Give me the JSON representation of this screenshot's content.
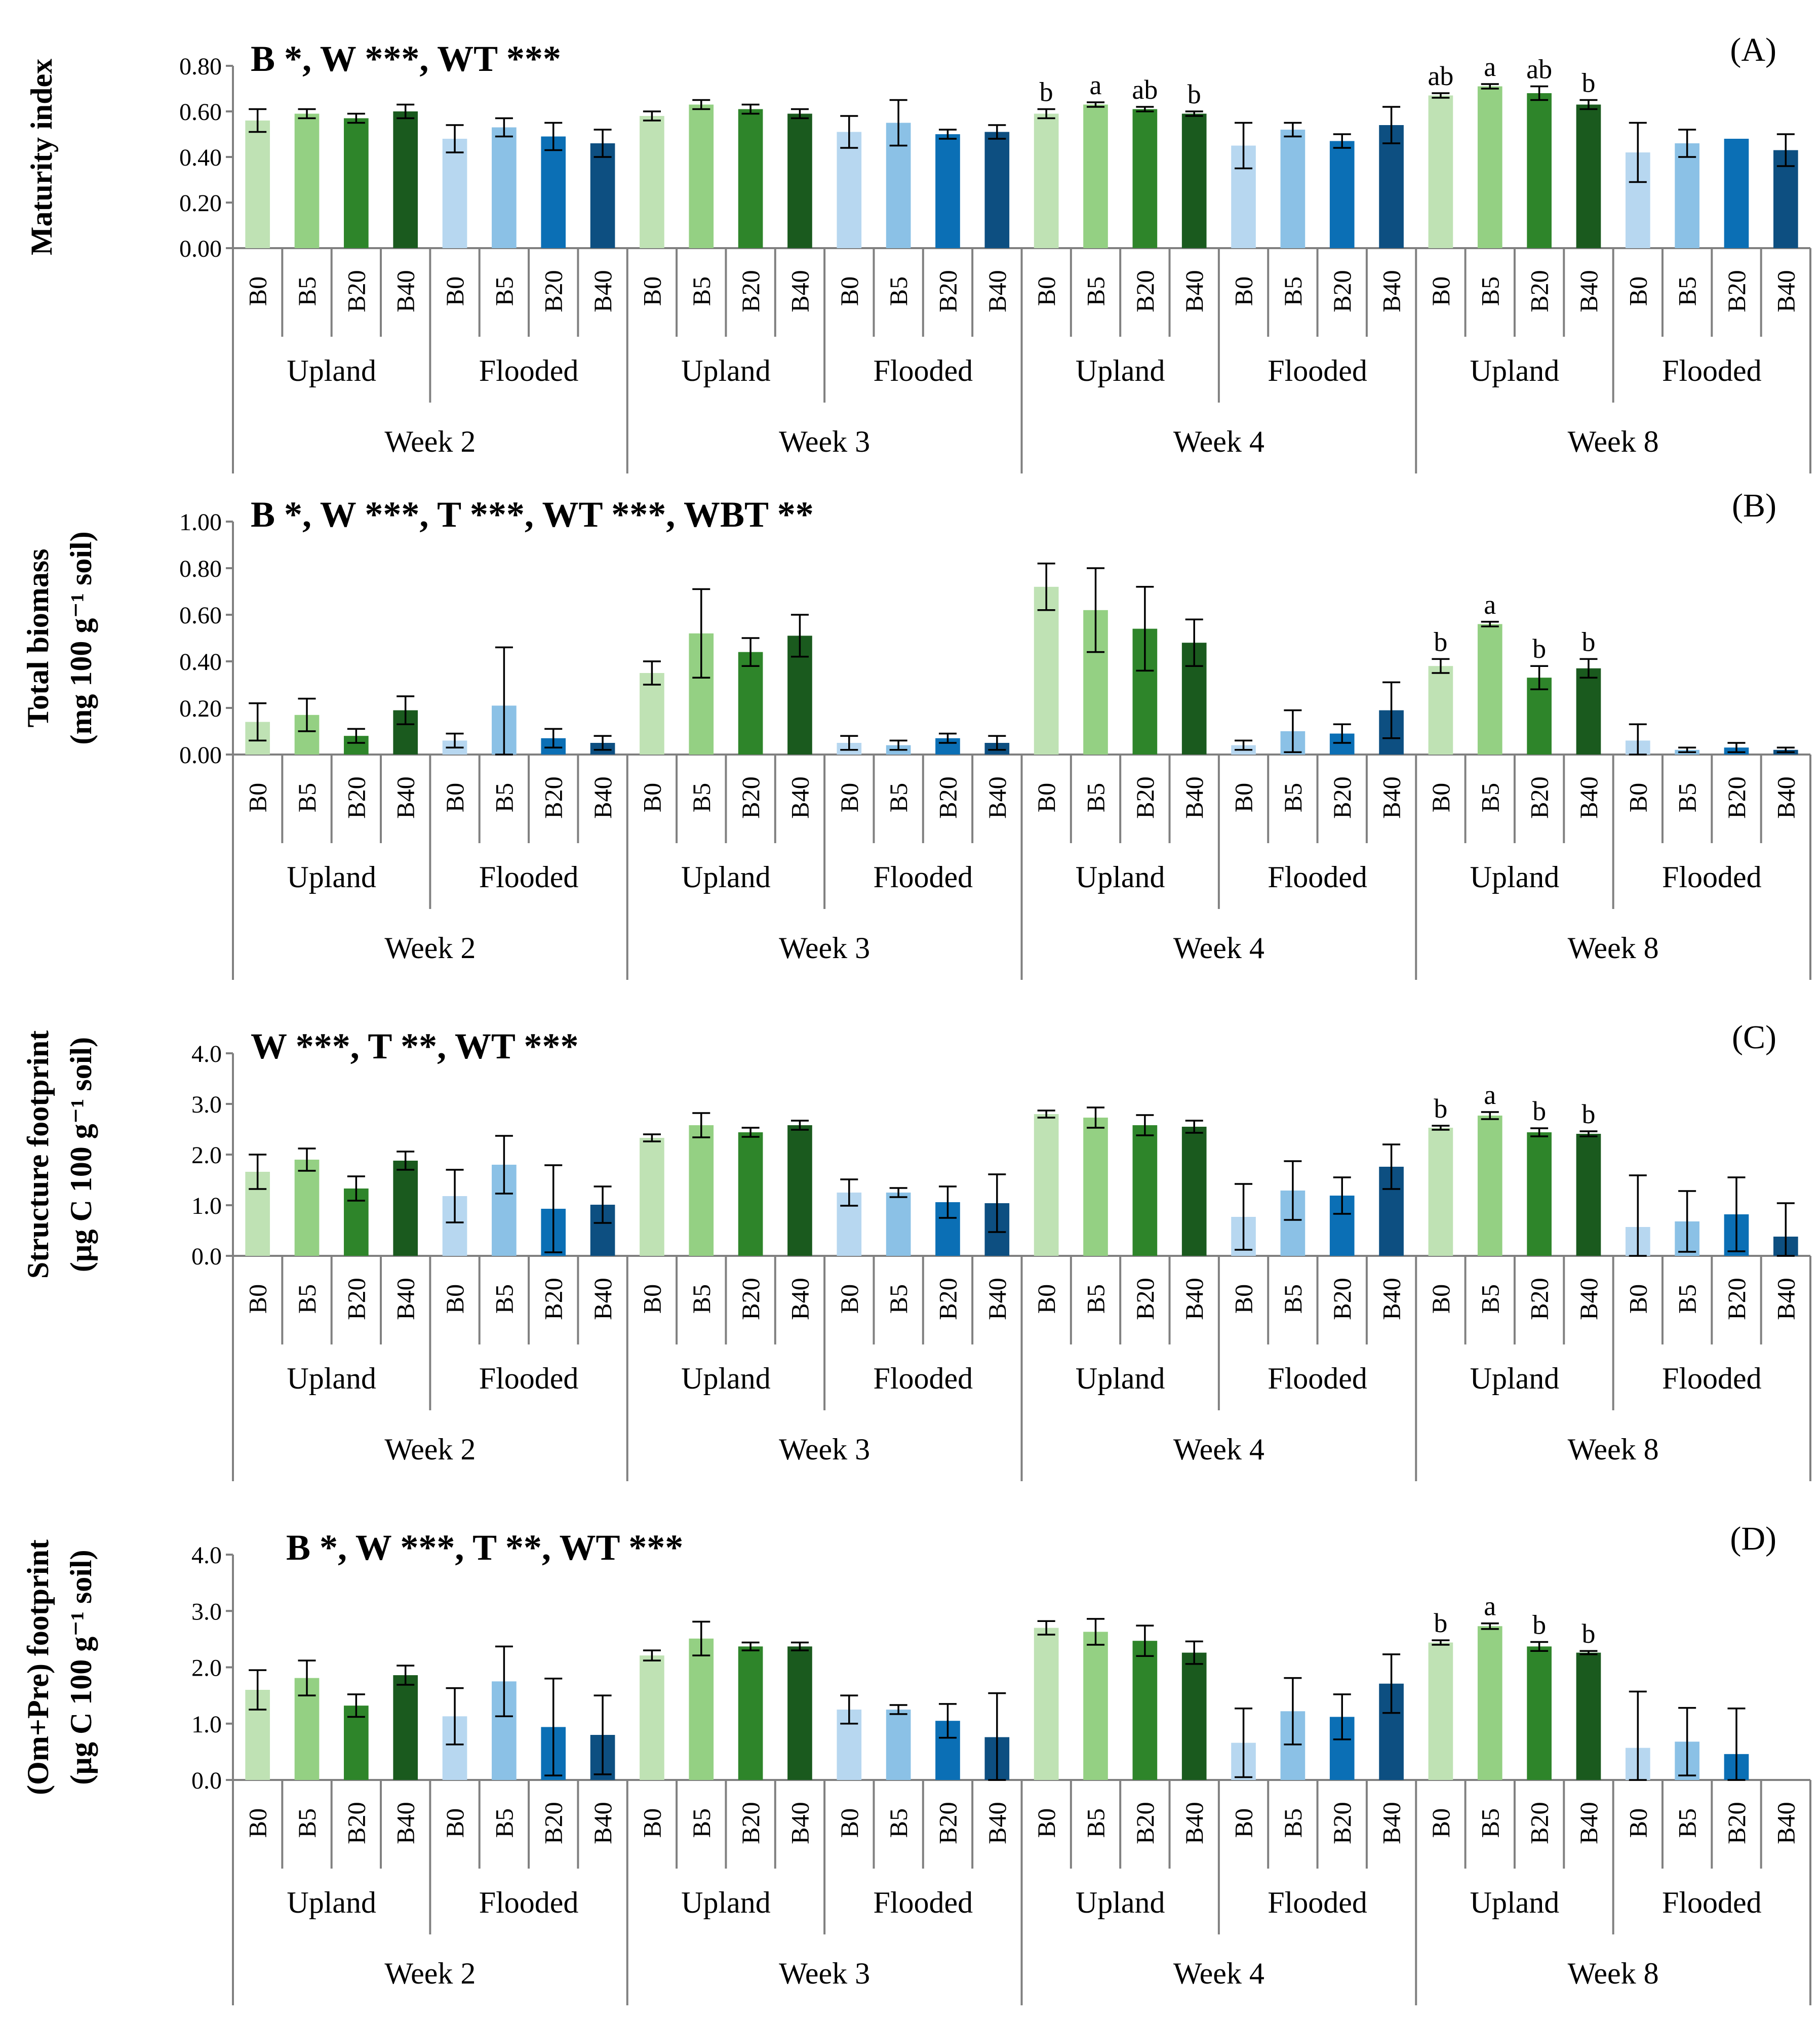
{
  "categories": [
    "B0",
    "B5",
    "B20",
    "B40"
  ],
  "treatments": [
    "Upland",
    "Flooded"
  ],
  "weeks": [
    "Week 2",
    "Week 3",
    "Week 4",
    "Week 8"
  ],
  "palette": {
    "Upland": [
      "#bfe2b4",
      "#94d083",
      "#2e852a",
      "#1a5a1e"
    ],
    "Flooded": [
      "#b7d7f0",
      "#8bc1e6",
      "#0b6fb5",
      "#0d4f81"
    ]
  },
  "chart_data": [
    {
      "type": "bar",
      "panel": "(A)",
      "stats": "B *, W ***, WT ***",
      "ylabel": [
        "Maturity index",
        ""
      ],
      "ylim": [
        0,
        0.8
      ],
      "yticks": [
        0,
        0.2,
        0.4,
        0.6,
        0.8
      ],
      "tick_decimals": 2,
      "series": [
        {
          "week": "Week 2",
          "treatment": "Upland",
          "values": [
            0.56,
            0.59,
            0.57,
            0.6
          ],
          "errors": [
            0.05,
            0.02,
            0.02,
            0.03
          ],
          "letters": [
            "",
            "",
            "",
            ""
          ]
        },
        {
          "week": "Week 2",
          "treatment": "Flooded",
          "values": [
            0.48,
            0.53,
            0.49,
            0.46
          ],
          "errors": [
            0.06,
            0.04,
            0.06,
            0.06
          ],
          "letters": [
            "",
            "",
            "",
            ""
          ]
        },
        {
          "week": "Week 3",
          "treatment": "Upland",
          "values": [
            0.58,
            0.63,
            0.61,
            0.59
          ],
          "errors": [
            0.02,
            0.02,
            0.02,
            0.02
          ],
          "letters": [
            "",
            "",
            "",
            ""
          ]
        },
        {
          "week": "Week 3",
          "treatment": "Flooded",
          "values": [
            0.51,
            0.55,
            0.5,
            0.51
          ],
          "errors": [
            0.07,
            0.1,
            0.02,
            0.03
          ],
          "letters": [
            "",
            "",
            "",
            ""
          ]
        },
        {
          "week": "Week 4",
          "treatment": "Upland",
          "values": [
            0.59,
            0.63,
            0.61,
            0.59
          ],
          "errors": [
            0.02,
            0.01,
            0.01,
            0.01
          ],
          "letters": [
            "b",
            "a",
            "ab",
            "b"
          ]
        },
        {
          "week": "Week 4",
          "treatment": "Flooded",
          "values": [
            0.45,
            0.52,
            0.47,
            0.54
          ],
          "errors": [
            0.1,
            0.03,
            0.03,
            0.08
          ],
          "letters": [
            "",
            "",
            "",
            ""
          ]
        },
        {
          "week": "Week 8",
          "treatment": "Upland",
          "values": [
            0.67,
            0.71,
            0.68,
            0.63
          ],
          "errors": [
            0.01,
            0.01,
            0.03,
            0.02
          ],
          "letters": [
            "ab",
            "a",
            "ab",
            "b"
          ]
        },
        {
          "week": "Week 8",
          "treatment": "Flooded",
          "values": [
            0.42,
            0.46,
            0.48,
            0.43
          ],
          "errors": [
            0.13,
            0.06,
            0.0,
            0.07
          ],
          "letters": [
            "",
            "",
            "",
            ""
          ]
        }
      ]
    },
    {
      "type": "bar",
      "panel": "(B)",
      "stats": "B *, W ***, T ***, WT ***, WBT **",
      "ylabel": [
        "Total biomass",
        "(mg 100 g⁻¹ soil)"
      ],
      "ylim": [
        0,
        1.0
      ],
      "yticks": [
        0,
        0.2,
        0.4,
        0.6,
        0.8,
        1.0
      ],
      "tick_decimals": 2,
      "series": [
        {
          "week": "Week 2",
          "treatment": "Upland",
          "values": [
            0.14,
            0.17,
            0.08,
            0.19
          ],
          "errors": [
            0.08,
            0.07,
            0.03,
            0.06
          ],
          "letters": [
            "",
            "",
            "",
            ""
          ]
        },
        {
          "week": "Week 2",
          "treatment": "Flooded",
          "values": [
            0.06,
            0.21,
            0.07,
            0.05
          ],
          "errors": [
            0.03,
            0.25,
            0.04,
            0.03
          ],
          "letters": [
            "",
            "",
            "",
            ""
          ]
        },
        {
          "week": "Week 3",
          "treatment": "Upland",
          "values": [
            0.35,
            0.52,
            0.44,
            0.51
          ],
          "errors": [
            0.05,
            0.19,
            0.06,
            0.09
          ],
          "letters": [
            "",
            "",
            "",
            ""
          ]
        },
        {
          "week": "Week 3",
          "treatment": "Flooded",
          "values": [
            0.05,
            0.04,
            0.07,
            0.05
          ],
          "errors": [
            0.03,
            0.02,
            0.02,
            0.03
          ],
          "letters": [
            "",
            "",
            "",
            ""
          ]
        },
        {
          "week": "Week 4",
          "treatment": "Upland",
          "values": [
            0.72,
            0.62,
            0.54,
            0.48
          ],
          "errors": [
            0.1,
            0.18,
            0.18,
            0.1
          ],
          "letters": [
            "",
            "",
            "",
            ""
          ]
        },
        {
          "week": "Week 4",
          "treatment": "Flooded",
          "values": [
            0.04,
            0.1,
            0.09,
            0.19
          ],
          "errors": [
            0.02,
            0.09,
            0.04,
            0.12
          ],
          "letters": [
            "",
            "",
            "",
            ""
          ]
        },
        {
          "week": "Week 8",
          "treatment": "Upland",
          "values": [
            0.38,
            0.56,
            0.33,
            0.37
          ],
          "errors": [
            0.03,
            0.01,
            0.05,
            0.04
          ],
          "letters": [
            "b",
            "a",
            "b",
            "b"
          ]
        },
        {
          "week": "Week 8",
          "treatment": "Flooded",
          "values": [
            0.06,
            0.02,
            0.03,
            0.02
          ],
          "errors": [
            0.07,
            0.01,
            0.02,
            0.01
          ],
          "letters": [
            "",
            "",
            "",
            ""
          ]
        }
      ]
    },
    {
      "type": "bar",
      "panel": "(C)",
      "stats": "W ***, T **, WT ***",
      "ylabel": [
        "Structure footprint",
        "(µg C 100 g⁻¹ soil)"
      ],
      "ylim": [
        0,
        4.0
      ],
      "yticks": [
        0,
        1,
        2,
        3,
        4
      ],
      "tick_decimals": 1,
      "series": [
        {
          "week": "Week 2",
          "treatment": "Upland",
          "values": [
            1.66,
            1.9,
            1.33,
            1.88
          ],
          "errors": [
            0.34,
            0.22,
            0.24,
            0.18
          ],
          "letters": [
            "",
            "",
            "",
            ""
          ]
        },
        {
          "week": "Week 2",
          "treatment": "Flooded",
          "values": [
            1.18,
            1.8,
            0.93,
            1.01
          ],
          "errors": [
            0.52,
            0.57,
            0.86,
            0.36
          ],
          "letters": [
            "",
            "",
            "",
            ""
          ]
        },
        {
          "week": "Week 3",
          "treatment": "Upland",
          "values": [
            2.33,
            2.58,
            2.44,
            2.58
          ],
          "errors": [
            0.07,
            0.24,
            0.09,
            0.09
          ],
          "letters": [
            "",
            "",
            "",
            ""
          ]
        },
        {
          "week": "Week 3",
          "treatment": "Flooded",
          "values": [
            1.25,
            1.25,
            1.06,
            1.04
          ],
          "errors": [
            0.26,
            0.09,
            0.31,
            0.57
          ],
          "letters": [
            "",
            "",
            "",
            ""
          ]
        },
        {
          "week": "Week 4",
          "treatment": "Upland",
          "values": [
            2.8,
            2.73,
            2.58,
            2.55
          ],
          "errors": [
            0.07,
            0.2,
            0.2,
            0.12
          ],
          "letters": [
            "",
            "",
            "",
            ""
          ]
        },
        {
          "week": "Week 4",
          "treatment": "Flooded",
          "values": [
            0.77,
            1.29,
            1.19,
            1.76
          ],
          "errors": [
            0.65,
            0.58,
            0.36,
            0.44
          ],
          "letters": [
            "",
            "",
            "",
            ""
          ]
        },
        {
          "week": "Week 8",
          "treatment": "Upland",
          "values": [
            2.53,
            2.77,
            2.44,
            2.41
          ],
          "errors": [
            0.04,
            0.07,
            0.08,
            0.05
          ],
          "letters": [
            "b",
            "a",
            "b",
            "b"
          ]
        },
        {
          "week": "Week 8",
          "treatment": "Flooded",
          "values": [
            0.57,
            0.68,
            0.82,
            0.38
          ],
          "errors": [
            1.02,
            0.6,
            0.73,
            0.66
          ],
          "letters": [
            "",
            "",
            "",
            ""
          ]
        }
      ]
    },
    {
      "type": "bar",
      "panel": "(D)",
      "stats": "B *, W ***, T **, WT ***",
      "ylabel": [
        "(Om+Pre) footprint",
        "(µg C 100 g⁻¹ soil)"
      ],
      "ylim": [
        0,
        4.0
      ],
      "yticks": [
        0,
        1,
        2,
        3,
        4
      ],
      "tick_decimals": 1,
      "series": [
        {
          "week": "Week 2",
          "treatment": "Upland",
          "values": [
            1.6,
            1.81,
            1.32,
            1.86
          ],
          "errors": [
            0.35,
            0.31,
            0.2,
            0.17
          ],
          "letters": [
            "",
            "",
            "",
            ""
          ]
        },
        {
          "week": "Week 2",
          "treatment": "Flooded",
          "values": [
            1.13,
            1.75,
            0.94,
            0.8
          ],
          "errors": [
            0.5,
            0.62,
            0.86,
            0.7
          ],
          "letters": [
            "",
            "",
            "",
            ""
          ]
        },
        {
          "week": "Week 3",
          "treatment": "Upland",
          "values": [
            2.21,
            2.51,
            2.37,
            2.37
          ],
          "errors": [
            0.09,
            0.3,
            0.07,
            0.07
          ],
          "letters": [
            "",
            "",
            "",
            ""
          ]
        },
        {
          "week": "Week 3",
          "treatment": "Flooded",
          "values": [
            1.25,
            1.25,
            1.05,
            0.76
          ],
          "errors": [
            0.25,
            0.08,
            0.3,
            0.78
          ],
          "letters": [
            "",
            "",
            "",
            ""
          ]
        },
        {
          "week": "Week 4",
          "treatment": "Upland",
          "values": [
            2.7,
            2.63,
            2.47,
            2.26
          ],
          "errors": [
            0.12,
            0.23,
            0.27,
            0.2
          ],
          "letters": [
            "",
            "",
            "",
            ""
          ]
        },
        {
          "week": "Week 4",
          "treatment": "Flooded",
          "values": [
            0.66,
            1.22,
            1.12,
            1.71
          ],
          "errors": [
            0.61,
            0.59,
            0.4,
            0.52
          ],
          "letters": [
            "",
            "",
            "",
            ""
          ]
        },
        {
          "week": "Week 8",
          "treatment": "Upland",
          "values": [
            2.44,
            2.73,
            2.37,
            2.26
          ],
          "errors": [
            0.04,
            0.05,
            0.08,
            0.03
          ],
          "letters": [
            "b",
            "a",
            "b",
            "b"
          ]
        },
        {
          "week": "Week 8",
          "treatment": "Flooded",
          "values": [
            0.57,
            0.68,
            0.46,
            0.0
          ],
          "errors": [
            1.0,
            0.6,
            0.81,
            0.0
          ],
          "letters": [
            "",
            "",
            "",
            ""
          ]
        }
      ]
    }
  ]
}
